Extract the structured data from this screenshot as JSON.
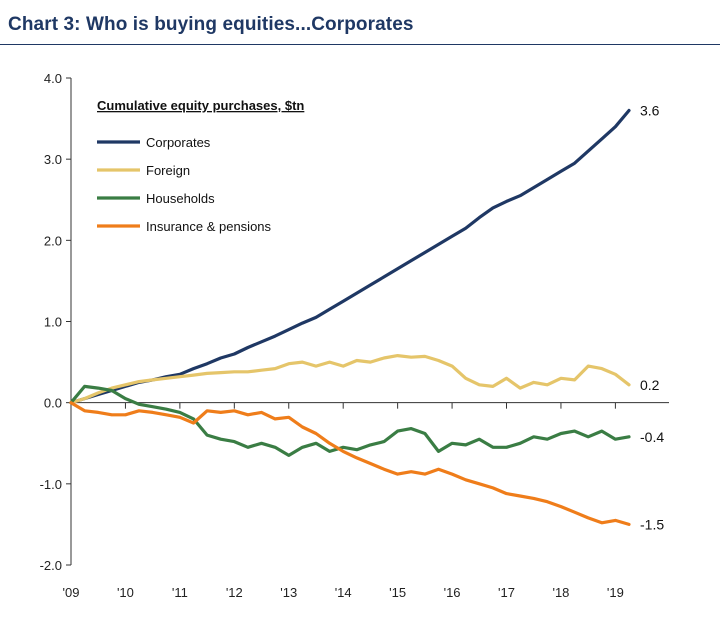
{
  "title": "Chart 3: Who is buying equities...Corporates",
  "chart_data": {
    "type": "line",
    "legend_title": "Cumulative equity purchases, $tn",
    "legend_position": "top-left",
    "ylim": [
      -2.0,
      4.0
    ],
    "y_ticks": [
      "4.0",
      "3.0",
      "2.0",
      "1.0",
      "0.0",
      "-1.0",
      "-2.0"
    ],
    "y_tick_values": [
      4.0,
      3.0,
      2.0,
      1.0,
      0.0,
      -1.0,
      -2.0
    ],
    "xlim": [
      2009.0,
      2019.25
    ],
    "x_ticks": [
      "'09",
      "'10",
      "'11",
      "'12",
      "'13",
      "'14",
      "'15",
      "'16",
      "'17",
      "'18",
      "'19"
    ],
    "x_tick_values": [
      2009,
      2010,
      2011,
      2012,
      2013,
      2014,
      2015,
      2016,
      2017,
      2018,
      2019
    ],
    "grid": false,
    "series": [
      {
        "name": "Corporates",
        "color": "#1f3864",
        "end_label": "3.6",
        "points": [
          [
            2009.0,
            0.0
          ],
          [
            2009.25,
            0.05
          ],
          [
            2009.5,
            0.1
          ],
          [
            2009.75,
            0.15
          ],
          [
            2010.0,
            0.2
          ],
          [
            2010.25,
            0.25
          ],
          [
            2010.5,
            0.28
          ],
          [
            2010.75,
            0.32
          ],
          [
            2011.0,
            0.35
          ],
          [
            2011.25,
            0.42
          ],
          [
            2011.5,
            0.48
          ],
          [
            2011.75,
            0.55
          ],
          [
            2012.0,
            0.6
          ],
          [
            2012.25,
            0.68
          ],
          [
            2012.5,
            0.75
          ],
          [
            2012.75,
            0.82
          ],
          [
            2013.0,
            0.9
          ],
          [
            2013.25,
            0.98
          ],
          [
            2013.5,
            1.05
          ],
          [
            2013.75,
            1.15
          ],
          [
            2014.0,
            1.25
          ],
          [
            2014.25,
            1.35
          ],
          [
            2014.5,
            1.45
          ],
          [
            2014.75,
            1.55
          ],
          [
            2015.0,
            1.65
          ],
          [
            2015.25,
            1.75
          ],
          [
            2015.5,
            1.85
          ],
          [
            2015.75,
            1.95
          ],
          [
            2016.0,
            2.05
          ],
          [
            2016.25,
            2.15
          ],
          [
            2016.5,
            2.28
          ],
          [
            2016.75,
            2.4
          ],
          [
            2017.0,
            2.48
          ],
          [
            2017.25,
            2.55
          ],
          [
            2017.5,
            2.65
          ],
          [
            2017.75,
            2.75
          ],
          [
            2018.0,
            2.85
          ],
          [
            2018.25,
            2.95
          ],
          [
            2018.5,
            3.1
          ],
          [
            2018.75,
            3.25
          ],
          [
            2019.0,
            3.4
          ],
          [
            2019.25,
            3.6
          ]
        ]
      },
      {
        "name": "Foreign",
        "color": "#e5c56a",
        "end_label": "0.2",
        "points": [
          [
            2009.0,
            0.0
          ],
          [
            2009.25,
            0.05
          ],
          [
            2009.5,
            0.12
          ],
          [
            2009.75,
            0.18
          ],
          [
            2010.0,
            0.22
          ],
          [
            2010.25,
            0.26
          ],
          [
            2010.5,
            0.28
          ],
          [
            2010.75,
            0.3
          ],
          [
            2011.0,
            0.32
          ],
          [
            2011.25,
            0.34
          ],
          [
            2011.5,
            0.36
          ],
          [
            2011.75,
            0.37
          ],
          [
            2012.0,
            0.38
          ],
          [
            2012.25,
            0.38
          ],
          [
            2012.5,
            0.4
          ],
          [
            2012.75,
            0.42
          ],
          [
            2013.0,
            0.48
          ],
          [
            2013.25,
            0.5
          ],
          [
            2013.5,
            0.45
          ],
          [
            2013.75,
            0.5
          ],
          [
            2014.0,
            0.45
          ],
          [
            2014.25,
            0.52
          ],
          [
            2014.5,
            0.5
          ],
          [
            2014.75,
            0.55
          ],
          [
            2015.0,
            0.58
          ],
          [
            2015.25,
            0.56
          ],
          [
            2015.5,
            0.57
          ],
          [
            2015.75,
            0.52
          ],
          [
            2016.0,
            0.45
          ],
          [
            2016.25,
            0.3
          ],
          [
            2016.5,
            0.22
          ],
          [
            2016.75,
            0.2
          ],
          [
            2017.0,
            0.3
          ],
          [
            2017.25,
            0.18
          ],
          [
            2017.5,
            0.25
          ],
          [
            2017.75,
            0.22
          ],
          [
            2018.0,
            0.3
          ],
          [
            2018.25,
            0.28
          ],
          [
            2018.5,
            0.45
          ],
          [
            2018.75,
            0.42
          ],
          [
            2019.0,
            0.35
          ],
          [
            2019.25,
            0.22
          ]
        ]
      },
      {
        "name": "Households",
        "color": "#3a7d44",
        "end_label": "-0.4",
        "points": [
          [
            2009.0,
            0.0
          ],
          [
            2009.25,
            0.2
          ],
          [
            2009.5,
            0.18
          ],
          [
            2009.75,
            0.15
          ],
          [
            2010.0,
            0.05
          ],
          [
            2010.25,
            -0.02
          ],
          [
            2010.5,
            -0.05
          ],
          [
            2010.75,
            -0.08
          ],
          [
            2011.0,
            -0.12
          ],
          [
            2011.25,
            -0.2
          ],
          [
            2011.5,
            -0.4
          ],
          [
            2011.75,
            -0.45
          ],
          [
            2012.0,
            -0.48
          ],
          [
            2012.25,
            -0.55
          ],
          [
            2012.5,
            -0.5
          ],
          [
            2012.75,
            -0.55
          ],
          [
            2013.0,
            -0.65
          ],
          [
            2013.25,
            -0.55
          ],
          [
            2013.5,
            -0.5
          ],
          [
            2013.75,
            -0.6
          ],
          [
            2014.0,
            -0.55
          ],
          [
            2014.25,
            -0.58
          ],
          [
            2014.5,
            -0.52
          ],
          [
            2014.75,
            -0.48
          ],
          [
            2015.0,
            -0.35
          ],
          [
            2015.25,
            -0.32
          ],
          [
            2015.5,
            -0.38
          ],
          [
            2015.75,
            -0.6
          ],
          [
            2016.0,
            -0.5
          ],
          [
            2016.25,
            -0.52
          ],
          [
            2016.5,
            -0.45
          ],
          [
            2016.75,
            -0.55
          ],
          [
            2017.0,
            -0.55
          ],
          [
            2017.25,
            -0.5
          ],
          [
            2017.5,
            -0.42
          ],
          [
            2017.75,
            -0.45
          ],
          [
            2018.0,
            -0.38
          ],
          [
            2018.25,
            -0.35
          ],
          [
            2018.5,
            -0.42
          ],
          [
            2018.75,
            -0.35
          ],
          [
            2019.0,
            -0.45
          ],
          [
            2019.25,
            -0.42
          ]
        ]
      },
      {
        "name": "Insurance & pensions",
        "color": "#ef7d1a",
        "end_label": "-1.5",
        "points": [
          [
            2009.0,
            0.0
          ],
          [
            2009.25,
            -0.1
          ],
          [
            2009.5,
            -0.12
          ],
          [
            2009.75,
            -0.15
          ],
          [
            2010.0,
            -0.15
          ],
          [
            2010.25,
            -0.1
          ],
          [
            2010.5,
            -0.12
          ],
          [
            2010.75,
            -0.15
          ],
          [
            2011.0,
            -0.18
          ],
          [
            2011.25,
            -0.25
          ],
          [
            2011.5,
            -0.1
          ],
          [
            2011.75,
            -0.12
          ],
          [
            2012.0,
            -0.1
          ],
          [
            2012.25,
            -0.15
          ],
          [
            2012.5,
            -0.12
          ],
          [
            2012.75,
            -0.2
          ],
          [
            2013.0,
            -0.18
          ],
          [
            2013.25,
            -0.3
          ],
          [
            2013.5,
            -0.38
          ],
          [
            2013.75,
            -0.5
          ],
          [
            2014.0,
            -0.6
          ],
          [
            2014.25,
            -0.68
          ],
          [
            2014.5,
            -0.75
          ],
          [
            2014.75,
            -0.82
          ],
          [
            2015.0,
            -0.88
          ],
          [
            2015.25,
            -0.85
          ],
          [
            2015.5,
            -0.88
          ],
          [
            2015.75,
            -0.82
          ],
          [
            2016.0,
            -0.88
          ],
          [
            2016.25,
            -0.95
          ],
          [
            2016.5,
            -1.0
          ],
          [
            2016.75,
            -1.05
          ],
          [
            2017.0,
            -1.12
          ],
          [
            2017.25,
            -1.15
          ],
          [
            2017.5,
            -1.18
          ],
          [
            2017.75,
            -1.22
          ],
          [
            2018.0,
            -1.28
          ],
          [
            2018.25,
            -1.35
          ],
          [
            2018.5,
            -1.42
          ],
          [
            2018.75,
            -1.48
          ],
          [
            2019.0,
            -1.45
          ],
          [
            2019.25,
            -1.5
          ]
        ]
      }
    ]
  }
}
